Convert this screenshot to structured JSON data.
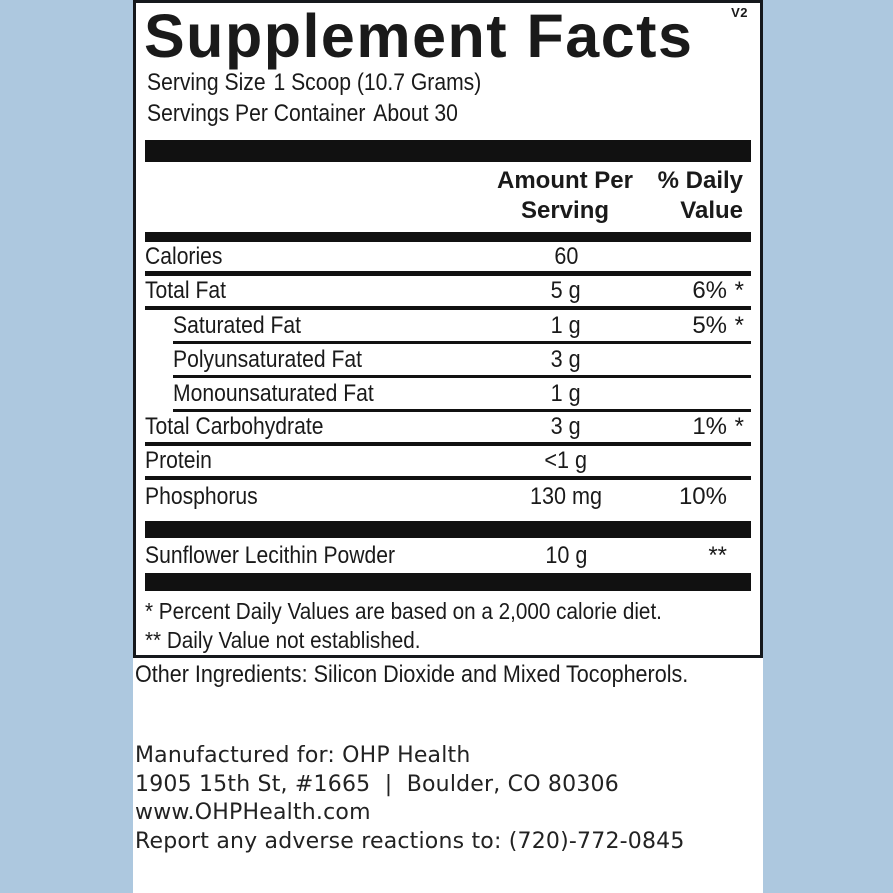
{
  "colors": {
    "background": "#adc8df",
    "sheet": "#ffffff",
    "bars_and_text": "#111111",
    "panel_border": "#15181c"
  },
  "panel": {
    "version": "V2",
    "title": "Supplement Facts",
    "serving_size": {
      "label": "Serving Size",
      "value": "1 Scoop (10.7 Grams)"
    },
    "servings_per_container": {
      "label": "Servings Per Container",
      "value": "About 30"
    },
    "columns": {
      "amount": "Amount Per\nServing",
      "daily_value": "% Daily\nValue"
    },
    "rows": [
      {
        "name": "Calories",
        "amount": "60",
        "dv": "",
        "star": ""
      },
      {
        "name": "Total Fat",
        "amount": "5 g",
        "dv": "6%",
        "star": "*"
      },
      {
        "name": "Saturated Fat",
        "amount": "1 g",
        "dv": "5%",
        "star": "*"
      },
      {
        "name": "Polyunsaturated Fat",
        "amount": "3 g",
        "dv": "",
        "star": ""
      },
      {
        "name": "Monounsaturated Fat",
        "amount": "1 g",
        "dv": "",
        "star": ""
      },
      {
        "name": "Total Carbohydrate",
        "amount": "3 g",
        "dv": "1%",
        "star": "*"
      },
      {
        "name": "Protein",
        "amount": "<1 g",
        "dv": "",
        "star": ""
      },
      {
        "name": "Phosphorus",
        "amount": "130 mg",
        "dv": "10%",
        "star": ""
      }
    ],
    "supplement_row": {
      "name": "Sunflower Lecithin Powder",
      "amount": "10 g",
      "dv": "**",
      "star": ""
    },
    "footnotes": [
      "* Percent Daily Values are based on a 2,000 calorie diet.",
      "** Daily Value not established."
    ]
  },
  "other_ingredients": "Other Ingredients: Silicon Dioxide and Mixed Tocopherols.",
  "footer": {
    "lines": [
      "Manufactured for: OHP Health",
      "1905 15th St, #1665  |  Boulder, CO 80306",
      "www.OHPHealth.com",
      "Report any adverse reactions to: (720)-772-0845"
    ]
  }
}
